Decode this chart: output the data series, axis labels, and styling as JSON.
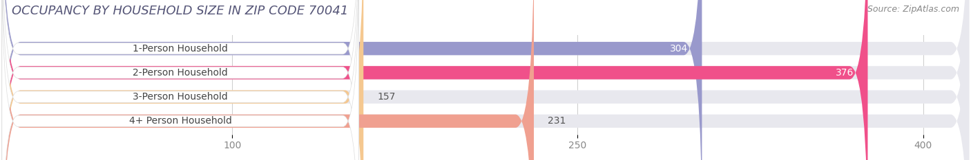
{
  "title": "OCCUPANCY BY HOUSEHOLD SIZE IN ZIP CODE 70041",
  "source": "Source: ZipAtlas.com",
  "categories": [
    "1-Person Household",
    "2-Person Household",
    "3-Person Household",
    "4+ Person Household"
  ],
  "values": [
    304,
    376,
    157,
    231
  ],
  "bar_colors": [
    "#9999cc",
    "#f0508a",
    "#f5c890",
    "#f0a090"
  ],
  "bar_label_value_colors": [
    "white",
    "white",
    "#666666",
    "#666666"
  ],
  "x_max": 420,
  "xticks": [
    100,
    250,
    400
  ],
  "background_color": "#ffffff",
  "bar_bg_color": "#e8e8ee",
  "title_color": "#555577",
  "source_color": "#888888",
  "title_fontsize": 13,
  "source_fontsize": 9,
  "label_fontsize": 10,
  "value_fontsize": 10,
  "tick_fontsize": 10
}
